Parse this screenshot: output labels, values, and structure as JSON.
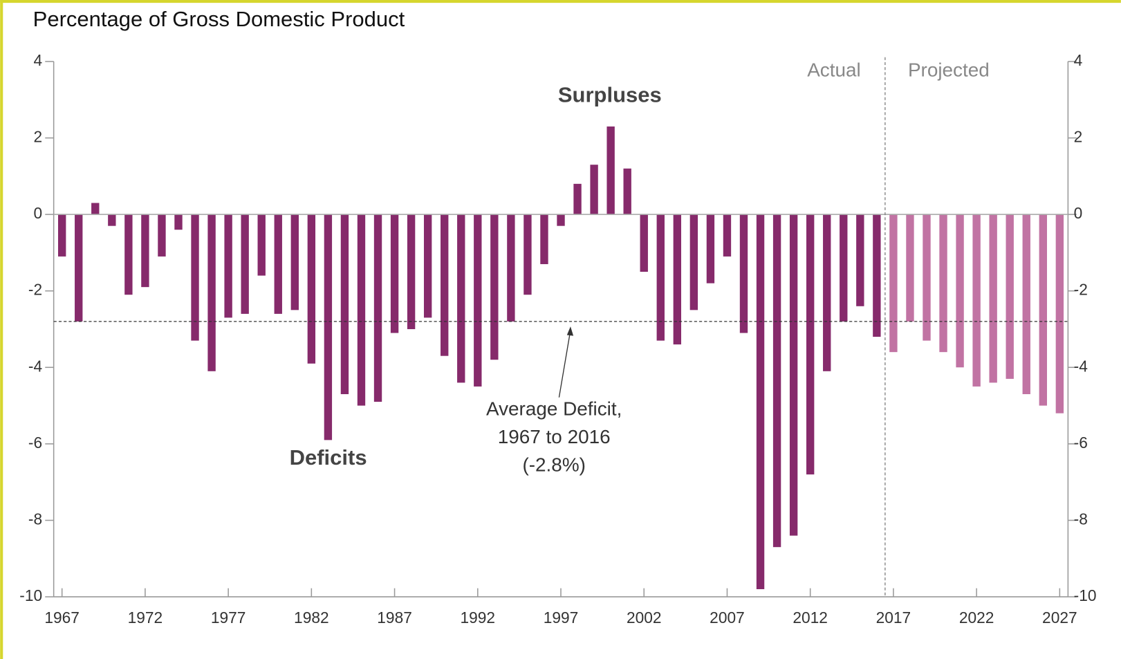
{
  "chart_data": {
    "type": "bar",
    "title": "Percentage of Gross Domestic Product",
    "x": [
      1967,
      1968,
      1969,
      1970,
      1971,
      1972,
      1973,
      1974,
      1975,
      1976,
      1977,
      1978,
      1979,
      1980,
      1981,
      1982,
      1983,
      1984,
      1985,
      1986,
      1987,
      1988,
      1989,
      1990,
      1991,
      1992,
      1993,
      1994,
      1995,
      1996,
      1997,
      1998,
      1999,
      2000,
      2001,
      2002,
      2003,
      2004,
      2005,
      2006,
      2007,
      2008,
      2009,
      2010,
      2011,
      2012,
      2013,
      2014,
      2015,
      2016,
      2017,
      2018,
      2019,
      2020,
      2021,
      2022,
      2023,
      2024,
      2025,
      2026,
      2027
    ],
    "series": [
      {
        "name": "Actual",
        "color": "#862a6b",
        "values": [
          -1.1,
          -2.8,
          0.3,
          -0.3,
          -2.1,
          -1.9,
          -1.1,
          -0.4,
          -3.3,
          -4.1,
          -2.7,
          -2.6,
          -1.6,
          -2.6,
          -2.5,
          -3.9,
          -5.9,
          -4.7,
          -5.0,
          -4.9,
          -3.1,
          -3.0,
          -2.7,
          -3.7,
          -4.4,
          -4.5,
          -3.8,
          -2.8,
          -2.1,
          -1.3,
          -0.3,
          0.8,
          1.3,
          2.3,
          1.2,
          -1.5,
          -3.3,
          -3.4,
          -2.5,
          -1.8,
          -1.1,
          -3.1,
          -9.8,
          -8.7,
          -8.4,
          -6.8,
          -4.1,
          -2.8,
          -2.4,
          -3.2,
          null,
          null,
          null,
          null,
          null,
          null,
          null,
          null,
          null,
          null,
          null
        ]
      },
      {
        "name": "Projected",
        "color": "#c173a3",
        "values": [
          null,
          null,
          null,
          null,
          null,
          null,
          null,
          null,
          null,
          null,
          null,
          null,
          null,
          null,
          null,
          null,
          null,
          null,
          null,
          null,
          null,
          null,
          null,
          null,
          null,
          null,
          null,
          null,
          null,
          null,
          null,
          null,
          null,
          null,
          null,
          null,
          null,
          null,
          null,
          null,
          null,
          null,
          null,
          null,
          null,
          null,
          null,
          null,
          null,
          null,
          -3.6,
          -2.8,
          -3.3,
          -3.6,
          -4.0,
          -4.5,
          -4.4,
          -4.3,
          -4.7,
          -5.0,
          -5.2
        ]
      }
    ],
    "xlim": [
      1966.5,
      2027.5
    ],
    "xticks": [
      1967,
      1972,
      1977,
      1982,
      1987,
      1992,
      1997,
      2002,
      2007,
      2012,
      2017,
      2022,
      2027
    ],
    "ylim": [
      -10,
      4
    ],
    "yticks": [
      -10,
      -8,
      -6,
      -4,
      -2,
      0,
      2,
      4
    ],
    "y2lim": [
      -10,
      4
    ],
    "y2ticks": [
      -10,
      -8,
      -6,
      -4,
      -2,
      0,
      2,
      4
    ],
    "average": {
      "value": -2.8,
      "label": [
        "Average Deficit,",
        "1967 to 2016",
        "(-2.8%)"
      ]
    },
    "annotations": [
      "Surpluses",
      "Deficits"
    ]
  }
}
